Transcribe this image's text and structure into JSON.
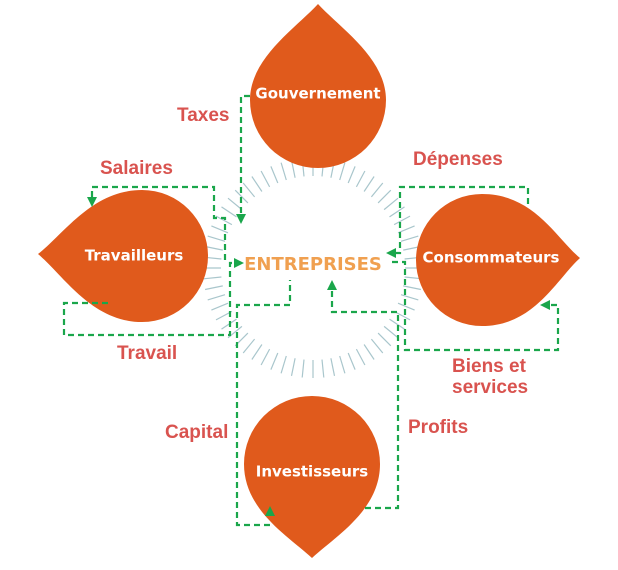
{
  "diagram": {
    "center": {
      "label": "ENTREPRISES"
    },
    "nodes": [
      {
        "id": "gouvernement",
        "label": "Gouvernement"
      },
      {
        "id": "travailleurs",
        "label": "Travailleurs"
      },
      {
        "id": "consommateurs",
        "label": "Consommateurs"
      },
      {
        "id": "investisseurs",
        "label": "Investisseurs"
      }
    ],
    "flows": [
      {
        "id": "taxes",
        "label": "Taxes"
      },
      {
        "id": "salaires",
        "label": "Salaires"
      },
      {
        "id": "travail",
        "label": "Travail"
      },
      {
        "id": "depenses",
        "label": "Dépenses"
      },
      {
        "id": "biens",
        "label_line1": "Biens et",
        "label_line2": "services"
      },
      {
        "id": "capital",
        "label": "Capital"
      },
      {
        "id": "profits",
        "label": "Profits"
      }
    ],
    "colors": {
      "node": "#e05a1c",
      "flow": "#1aa64b",
      "flow_label": "#d9534f",
      "center_label": "#f0a050",
      "ray": "#a9c6cc"
    }
  }
}
